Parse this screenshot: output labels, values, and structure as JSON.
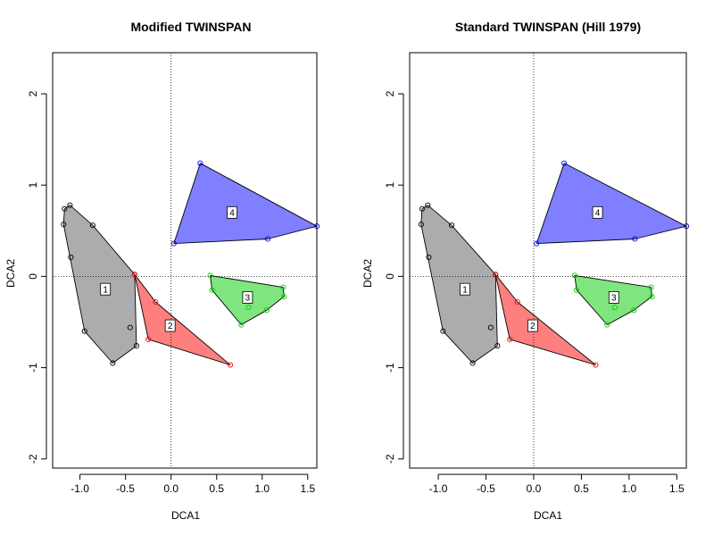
{
  "chart_data": [
    {
      "type": "scatter",
      "title": "Modified TWINSPAN",
      "xlabel": "DCA1",
      "ylabel": "DCA2",
      "xlim": [
        -1.3,
        1.6
      ],
      "ylim": [
        -2.1,
        2.45
      ],
      "x_ticks": [
        -1.0,
        -0.5,
        0.0,
        0.5,
        1.0,
        1.5
      ],
      "x_tick_labels": [
        "-1.0",
        "-0.5",
        "0.0",
        "0.5",
        "1.0",
        "1.5"
      ],
      "y_ticks": [
        -2,
        -1,
        0,
        1,
        2
      ],
      "y_tick_labels": [
        "-2",
        "-1",
        "0",
        "1",
        "2"
      ],
      "reference_lines": {
        "x": 0,
        "y": 0,
        "style": "dotted"
      },
      "groups": [
        {
          "label": "1",
          "fill": "#5a5a5a",
          "point_color": "#000000",
          "centroid": [
            -0.72,
            -0.14
          ],
          "points": [
            [
              -1.18,
              0.57
            ],
            [
              -1.17,
              0.74
            ],
            [
              -1.11,
              0.78
            ],
            [
              -1.1,
              0.21
            ],
            [
              -0.86,
              0.56
            ],
            [
              -0.95,
              -0.6
            ],
            [
              -0.64,
              -0.95
            ],
            [
              -0.45,
              -0.56
            ],
            [
              -0.38,
              -0.76
            ],
            [
              -0.4,
              0.02
            ]
          ],
          "hull": [
            [
              -1.18,
              0.57
            ],
            [
              -1.17,
              0.74
            ],
            [
              -1.11,
              0.78
            ],
            [
              -0.86,
              0.56
            ],
            [
              -0.4,
              0.02
            ],
            [
              -0.38,
              -0.76
            ],
            [
              -0.64,
              -0.95
            ],
            [
              -0.95,
              -0.6
            ]
          ]
        },
        {
          "label": "2",
          "fill": "#ff0000",
          "point_color": "#ff0000",
          "centroid": [
            -0.01,
            -0.54
          ],
          "points": [
            [
              -0.4,
              0.02
            ],
            [
              -0.17,
              -0.28
            ],
            [
              -0.25,
              -0.69
            ],
            [
              0.65,
              -0.97
            ]
          ],
          "hull": [
            [
              -0.4,
              0.02
            ],
            [
              -0.17,
              -0.28
            ],
            [
              0.65,
              -0.97
            ],
            [
              -0.25,
              -0.69
            ]
          ]
        },
        {
          "label": "3",
          "fill": "#00cc00",
          "point_color": "#00cc00",
          "centroid": [
            0.84,
            -0.23
          ],
          "points": [
            [
              0.43,
              0.01
            ],
            [
              0.45,
              -0.15
            ],
            [
              0.77,
              -0.53
            ],
            [
              0.85,
              -0.34
            ],
            [
              1.05,
              -0.37
            ],
            [
              1.23,
              -0.12
            ],
            [
              1.24,
              -0.22
            ]
          ],
          "hull": [
            [
              0.43,
              0.01
            ],
            [
              1.23,
              -0.12
            ],
            [
              1.24,
              -0.22
            ],
            [
              1.05,
              -0.37
            ],
            [
              0.77,
              -0.53
            ],
            [
              0.45,
              -0.15
            ]
          ]
        },
        {
          "label": "4",
          "fill": "#0000ff",
          "point_color": "#0000ff",
          "centroid": [
            0.67,
            0.7
          ],
          "points": [
            [
              0.32,
              1.24
            ],
            [
              0.03,
              0.36
            ],
            [
              1.06,
              0.41
            ],
            [
              1.6,
              0.55
            ]
          ],
          "hull": [
            [
              0.32,
              1.24
            ],
            [
              1.6,
              0.55
            ],
            [
              1.06,
              0.41
            ],
            [
              0.03,
              0.36
            ]
          ]
        }
      ]
    },
    {
      "type": "scatter",
      "title": "Standard TWINSPAN (Hill 1979)",
      "xlabel": "DCA1",
      "ylabel": "DCA2",
      "xlim": [
        -1.3,
        1.6
      ],
      "ylim": [
        -2.1,
        2.45
      ],
      "x_ticks": [
        -1.0,
        -0.5,
        0.0,
        0.5,
        1.0,
        1.5
      ],
      "x_tick_labels": [
        "-1.0",
        "-0.5",
        "0.0",
        "0.5",
        "1.0",
        "1.5"
      ],
      "y_ticks": [
        -2,
        -1,
        0,
        1,
        2
      ],
      "y_tick_labels": [
        "-2",
        "-1",
        "0",
        "1",
        "2"
      ],
      "reference_lines": {
        "x": 0,
        "y": 0,
        "style": "dotted"
      },
      "groups": [
        {
          "label": "1",
          "fill": "#5a5a5a",
          "point_color": "#000000",
          "centroid": [
            -0.72,
            -0.14
          ],
          "points": [
            [
              -1.18,
              0.57
            ],
            [
              -1.17,
              0.74
            ],
            [
              -1.11,
              0.78
            ],
            [
              -1.1,
              0.21
            ],
            [
              -0.86,
              0.56
            ],
            [
              -0.95,
              -0.6
            ],
            [
              -0.64,
              -0.95
            ],
            [
              -0.45,
              -0.56
            ],
            [
              -0.38,
              -0.76
            ],
            [
              -0.4,
              0.02
            ]
          ],
          "hull": [
            [
              -1.18,
              0.57
            ],
            [
              -1.17,
              0.74
            ],
            [
              -1.11,
              0.78
            ],
            [
              -0.86,
              0.56
            ],
            [
              -0.4,
              0.02
            ],
            [
              -0.38,
              -0.76
            ],
            [
              -0.64,
              -0.95
            ],
            [
              -0.95,
              -0.6
            ]
          ]
        },
        {
          "label": "2",
          "fill": "#ff0000",
          "point_color": "#ff0000",
          "centroid": [
            -0.01,
            -0.54
          ],
          "points": [
            [
              -0.4,
              0.02
            ],
            [
              -0.17,
              -0.28
            ],
            [
              -0.25,
              -0.69
            ],
            [
              0.65,
              -0.97
            ]
          ],
          "hull": [
            [
              -0.4,
              0.02
            ],
            [
              -0.17,
              -0.28
            ],
            [
              0.65,
              -0.97
            ],
            [
              -0.25,
              -0.69
            ]
          ]
        },
        {
          "label": "3",
          "fill": "#00cc00",
          "point_color": "#00cc00",
          "centroid": [
            0.84,
            -0.23
          ],
          "points": [
            [
              0.43,
              0.01
            ],
            [
              0.45,
              -0.15
            ],
            [
              0.77,
              -0.53
            ],
            [
              0.85,
              -0.34
            ],
            [
              1.05,
              -0.37
            ],
            [
              1.23,
              -0.12
            ],
            [
              1.24,
              -0.22
            ]
          ],
          "hull": [
            [
              0.43,
              0.01
            ],
            [
              1.23,
              -0.12
            ],
            [
              1.24,
              -0.22
            ],
            [
              1.05,
              -0.37
            ],
            [
              0.77,
              -0.53
            ],
            [
              0.45,
              -0.15
            ]
          ]
        },
        {
          "label": "4",
          "fill": "#0000ff",
          "point_color": "#0000ff",
          "centroid": [
            0.67,
            0.7
          ],
          "points": [
            [
              0.32,
              1.24
            ],
            [
              0.03,
              0.36
            ],
            [
              1.06,
              0.41
            ],
            [
              1.6,
              0.55
            ]
          ],
          "hull": [
            [
              0.32,
              1.24
            ],
            [
              1.6,
              0.55
            ],
            [
              1.06,
              0.41
            ],
            [
              0.03,
              0.36
            ]
          ]
        }
      ]
    }
  ]
}
